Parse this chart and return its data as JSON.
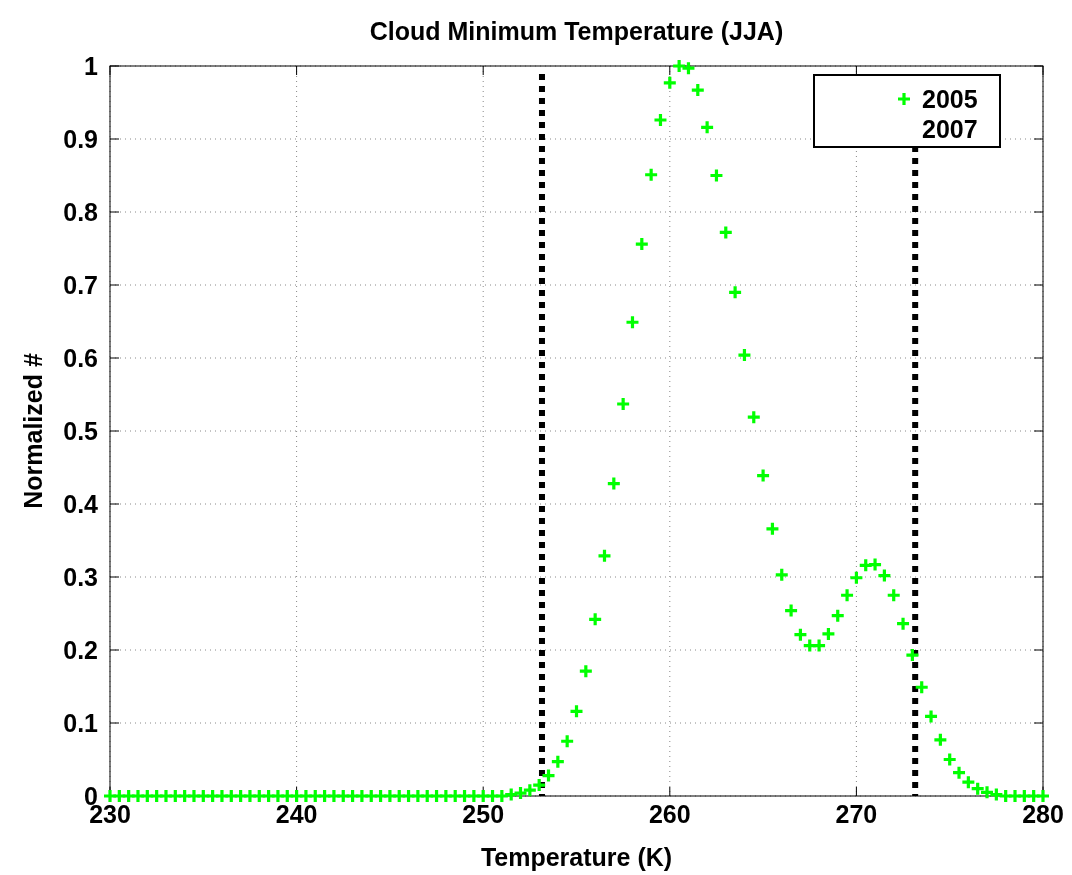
{
  "chart_data": {
    "type": "scatter",
    "title": "Cloud Minimum Temperature (JJA)",
    "xlabel": "Temperature (K)",
    "ylabel": "Normalized #",
    "x": [
      230,
      230.5,
      231,
      231.5,
      232,
      232.5,
      233,
      233.5,
      234,
      234.5,
      235,
      235.5,
      236,
      236.5,
      237,
      237.5,
      238,
      238.5,
      239,
      239.5,
      240,
      240.5,
      241,
      241.5,
      242,
      242.5,
      243,
      243.5,
      244,
      244.5,
      245,
      245.5,
      246,
      246.5,
      247,
      247.5,
      248,
      248.5,
      249,
      249.5,
      250,
      250.5,
      251,
      251.5,
      252,
      252.5,
      253,
      253.5,
      254,
      254.5,
      255,
      255.5,
      256,
      256.5,
      257,
      257.5,
      258,
      258.5,
      259,
      259.5,
      260,
      260.5,
      261,
      261.5,
      262,
      262.5,
      263,
      263.5,
      264,
      264.5,
      265,
      265.5,
      266,
      266.5,
      267,
      267.5,
      268,
      268.5,
      269,
      269.5,
      270,
      270.5,
      271,
      271.5,
      272,
      272.5,
      273,
      273.5,
      274,
      274.5,
      275,
      275.5,
      276,
      276.5,
      277,
      277.5,
      278,
      278.5,
      279,
      279.5,
      280
    ],
    "series": [
      {
        "name": "2005",
        "color": "#00ff00",
        "values": [
          0,
          0,
          0,
          0,
          0,
          0,
          0,
          0,
          0,
          0,
          0,
          0,
          0,
          0,
          0,
          0,
          0,
          0,
          0,
          0,
          0,
          0,
          0,
          0,
          0,
          0,
          0,
          0,
          0,
          0,
          0,
          0,
          0,
          0,
          0,
          0,
          0,
          0,
          0,
          0,
          0,
          0,
          0,
          0.002,
          0.004,
          0.008,
          0.015,
          0.028,
          0.047,
          0.075,
          0.116,
          0.171,
          0.242,
          0.329,
          0.428,
          0.537,
          0.649,
          0.756,
          0.851,
          0.926,
          0.977,
          1,
          0.997,
          0.967,
          0.916,
          0.85,
          0.772,
          0.69,
          0.604,
          0.519,
          0.439,
          0.366,
          0.303,
          0.254,
          0.221,
          0.206,
          0.206,
          0.222,
          0.247,
          0.275,
          0.299,
          0.316,
          0.317,
          0.302,
          0.275,
          0.236,
          0.193,
          0.149,
          0.109,
          0.077,
          0.05,
          0.032,
          0.019,
          0.01,
          0.005,
          0.002,
          0,
          0,
          0,
          0,
          0
        ]
      },
      {
        "name": "2007",
        "values": [
          null,
          null,
          null,
          null,
          null,
          null,
          null,
          null,
          null,
          null,
          null,
          null,
          null,
          null,
          null,
          null,
          null,
          null,
          null,
          null,
          null,
          null,
          null,
          null,
          null,
          null,
          null,
          null,
          null,
          null,
          null,
          null,
          null,
          null,
          null,
          null,
          null,
          null,
          null,
          null,
          null,
          null,
          null,
          null,
          null,
          null,
          null,
          null,
          null,
          null,
          null,
          null,
          null,
          null,
          null,
          null,
          null,
          null,
          null,
          null,
          null,
          null,
          null,
          null,
          null,
          null,
          null,
          null,
          null,
          null,
          null,
          null,
          null,
          null,
          null,
          null,
          null,
          null,
          null,
          null,
          null,
          null,
          null,
          null,
          null,
          null,
          null,
          null,
          null,
          null,
          null,
          null,
          null,
          null,
          null,
          null,
          null,
          null,
          null,
          null,
          null
        ]
      }
    ],
    "xlim": [
      230,
      280
    ],
    "xticks": [
      230,
      240,
      250,
      260,
      270,
      280
    ],
    "ylim": [
      0,
      1
    ],
    "yticks": [
      0,
      0.1,
      0.2,
      0.3,
      0.4,
      0.5,
      0.6,
      0.7,
      0.8,
      0.9,
      1
    ],
    "ref_lines": [
      {
        "axis": "x",
        "value": 253.15,
        "color": "#000000",
        "line_style": "dotted"
      },
      {
        "axis": "x",
        "value": 273.15,
        "color": "#000000",
        "line_style": "dotted"
      }
    ],
    "grid": true,
    "legend": "top right",
    "marker": "cross"
  }
}
